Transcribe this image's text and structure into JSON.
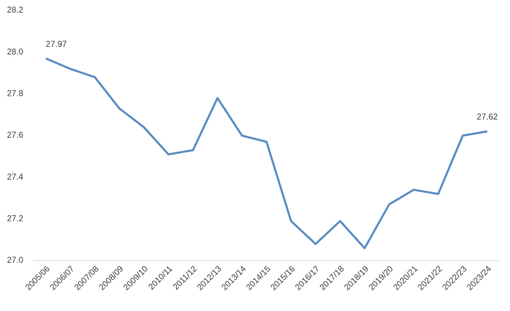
{
  "chart_data": {
    "type": "line",
    "categories": [
      "2005/06",
      "2006/07",
      "2007/08",
      "2008/09",
      "2009/10",
      "2010/11",
      "2011/12",
      "2012/13",
      "2013/14",
      "2014/15",
      "2015/16",
      "2016/17",
      "2017/18",
      "2018/19",
      "2019/20",
      "2020/21",
      "2021/22",
      "2022/23",
      "2023/24"
    ],
    "series": [
      {
        "color": "#5b8ec2",
        "values": [
          27.97,
          27.92,
          27.88,
          27.73,
          27.64,
          27.51,
          27.53,
          27.78,
          27.6,
          27.57,
          27.19,
          27.08,
          27.19,
          27.06,
          27.27,
          27.34,
          27.32,
          27.6,
          27.62
        ],
        "value_labels": [
          "27.97",
          null,
          null,
          null,
          null,
          null,
          null,
          null,
          null,
          null,
          null,
          null,
          null,
          null,
          null,
          null,
          null,
          null,
          "27.62"
        ]
      }
    ],
    "ylim": [
      27.0,
      28.2
    ],
    "yticks": [
      {
        "value": 27.0,
        "label": "27.0"
      },
      27.2,
      27.4,
      27.6,
      27.8,
      {
        "value": 28.0,
        "label": "28.0"
      },
      28.2
    ],
    "grid": false
  }
}
